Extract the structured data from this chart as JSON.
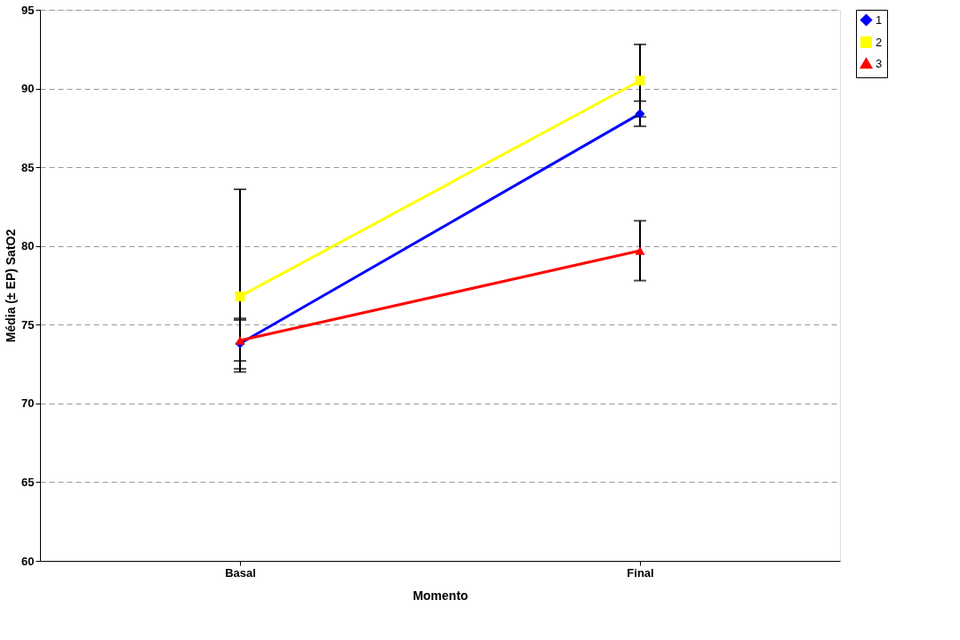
{
  "chart_data": {
    "type": "line",
    "xlabel": "Momento",
    "ylabel": "Média (± EP) SatO2",
    "categories": [
      "Basal",
      "Final"
    ],
    "series": [
      {
        "name": "1",
        "color": "#0000ff",
        "marker": "diamond",
        "values": [
          73.8,
          88.4
        ],
        "errors": [
          [
            72.2,
            75.4
          ],
          [
            87.6,
            89.2
          ]
        ]
      },
      {
        "name": "2",
        "color": "#ffff00",
        "marker": "square",
        "values": [
          76.8,
          90.5
        ],
        "errors": [
          [
            72.0,
            83.6
          ],
          [
            88.2,
            92.8
          ]
        ]
      },
      {
        "name": "3",
        "color": "#ff0000",
        "marker": "triangle",
        "values": [
          74.0,
          79.7
        ],
        "errors": [
          [
            72.7,
            75.3
          ],
          [
            77.8,
            81.6
          ]
        ]
      }
    ],
    "ylim": [
      60,
      95
    ],
    "yticks": [
      60,
      65,
      70,
      75,
      80,
      85,
      90,
      95
    ],
    "grid": "y",
    "line_style": "solid",
    "legend": "right"
  }
}
